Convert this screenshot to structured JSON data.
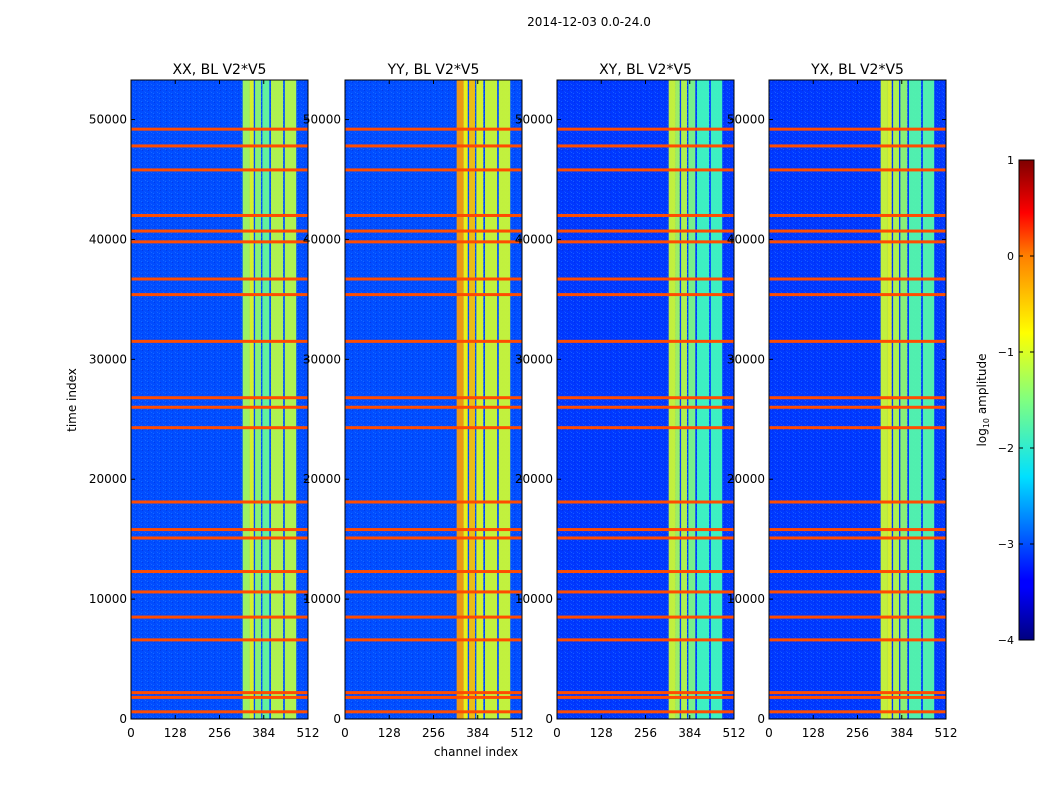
{
  "figure_title": "2014-12-03 0.0-24.0",
  "ylabel": "time index",
  "xlabel": "channel index",
  "colorbar": {
    "label_prefix": "log",
    "label_sub": "10",
    "label_suffix": " amplitude",
    "ticks": [
      "1",
      "0",
      "−1",
      "−2",
      "−3",
      "−4"
    ]
  },
  "x_ticks": [
    "0",
    "128",
    "256",
    "384",
    "512"
  ],
  "y_ticks": [
    "0",
    "10000",
    "20000",
    "30000",
    "40000",
    "50000"
  ],
  "chart_data": {
    "type": "heatmap",
    "colormap": "jet",
    "color_range": [
      -4,
      1
    ],
    "xlim": [
      0,
      512
    ],
    "ylim": [
      0,
      53300
    ],
    "panels": [
      {
        "title": "XX, BL V2*V5",
        "band_levels": [
          -1.3,
          -1.0,
          -1.4,
          -1.6,
          -1.2
        ],
        "background_level": -3.0
      },
      {
        "title": "YY, BL V2*V5",
        "band_levels": [
          -0.4,
          -0.9,
          -0.6,
          -1.0,
          -1.1
        ],
        "background_level": -3.0
      },
      {
        "title": "XY, BL V2*V5",
        "band_levels": [
          -1.1,
          -1.3,
          -1.2,
          -1.5,
          -1.8
        ],
        "background_level": -3.1
      },
      {
        "title": "YX, BL V2*V5",
        "band_levels": [
          -1.1,
          -1.0,
          -1.2,
          -1.4,
          -1.7
        ],
        "background_level": -3.1
      }
    ],
    "band_channels": [
      [
        323,
        343
      ],
      [
        343,
        355
      ],
      [
        359,
        376
      ],
      [
        380,
        400
      ],
      [
        405,
        440
      ],
      [
        445,
        478
      ]
    ],
    "flagged_times": [
      600,
      1800,
      2200,
      6600,
      8500,
      10600,
      12300,
      15100,
      15800,
      18100,
      24300,
      26000,
      26800,
      31500,
      35400,
      36700,
      39800,
      40700,
      42000,
      45800,
      47800,
      49200
    ],
    "flag_level": 0.0
  }
}
